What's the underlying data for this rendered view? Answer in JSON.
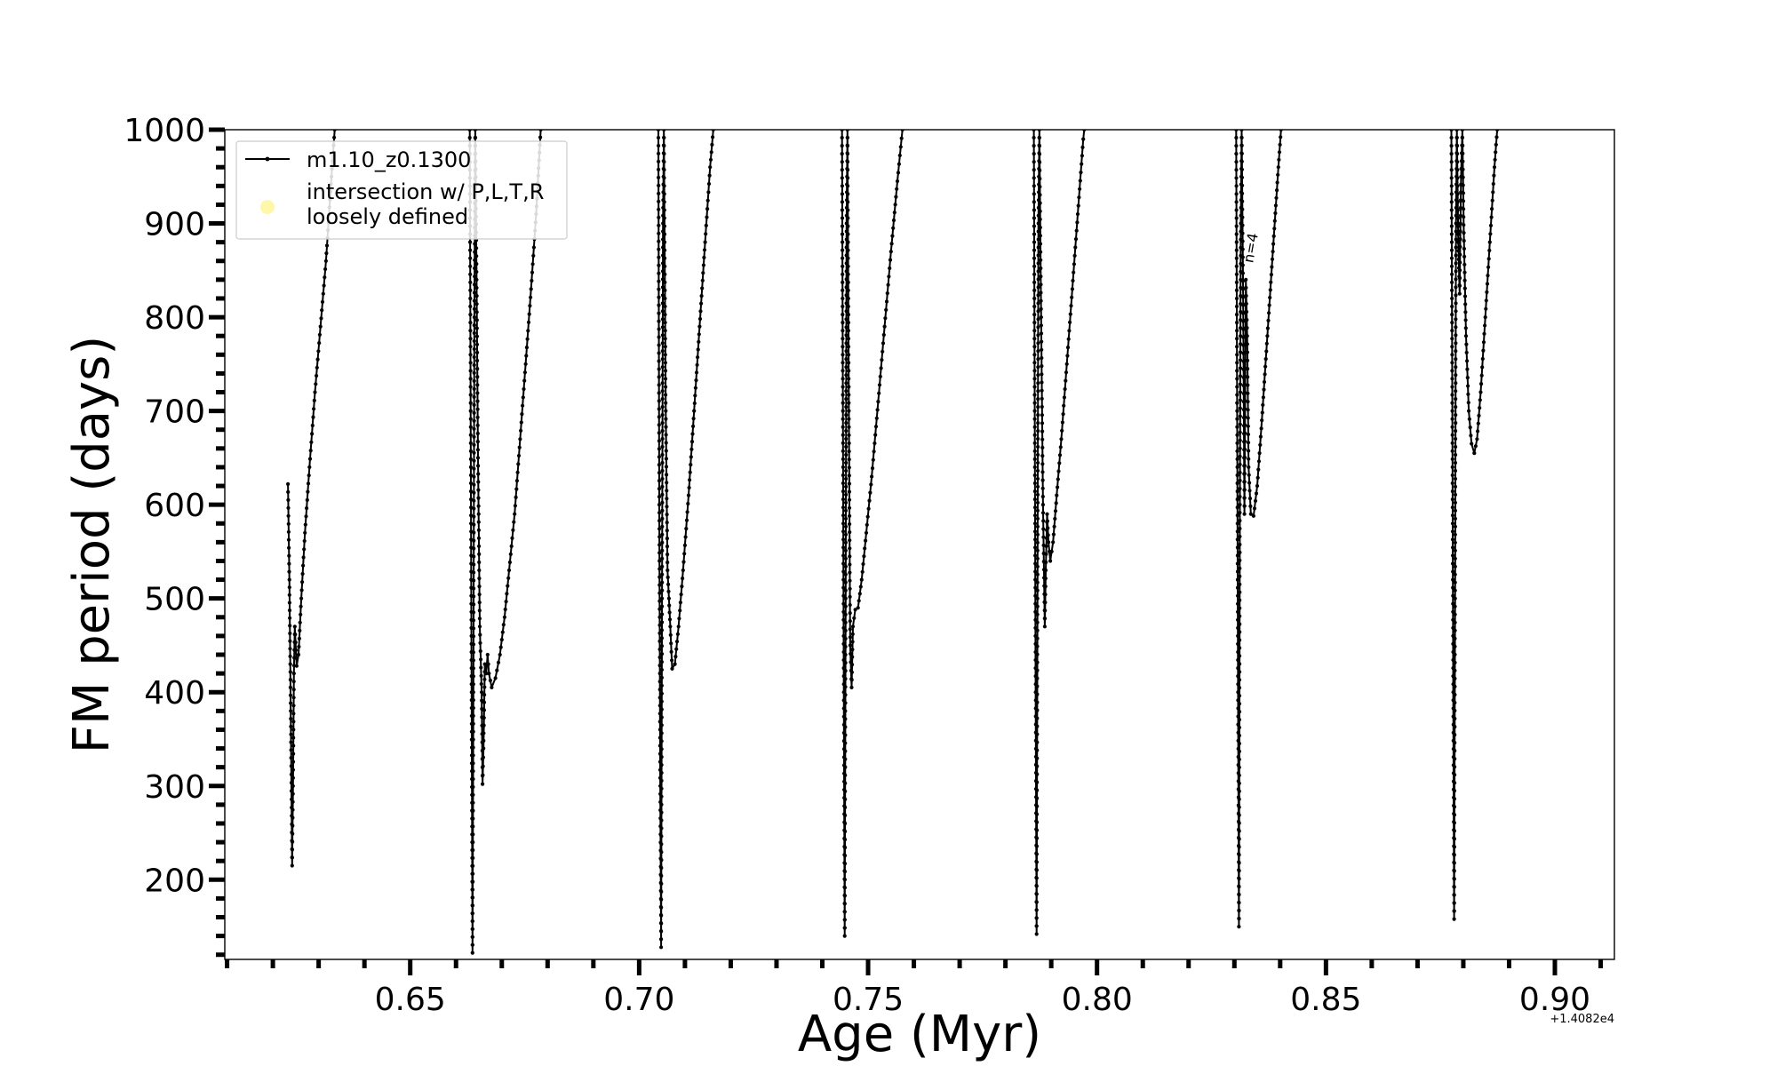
{
  "chart_data": {
    "type": "line",
    "xlabel": "Age (Myr)",
    "ylabel": "FM period (days)",
    "x_offset_label": "+1.4082e4",
    "xlim": [
      0.6095,
      0.913
    ],
    "ylim": [
      115,
      1000
    ],
    "xticks": [
      0.65,
      0.7,
      0.75,
      0.8,
      0.85,
      0.9
    ],
    "xtick_labels": [
      "0.65",
      "0.70",
      "0.75",
      "0.80",
      "0.85",
      "0.90"
    ],
    "yticks": [
      200,
      300,
      400,
      500,
      600,
      700,
      800,
      900,
      1000
    ],
    "ytick_labels": [
      "200",
      "300",
      "400",
      "500",
      "600",
      "700",
      "800",
      "900",
      "1000"
    ],
    "grid": false,
    "legend_position": "top-left",
    "legend": [
      {
        "label": "m1.10_z0.1300",
        "marker": "line-dot",
        "color": "#000000"
      },
      {
        "label": "intersection w/ P,L,T,R",
        "label_line2": "loosely defined",
        "marker": "circle",
        "color": "#fff7a8"
      }
    ],
    "annotations": [
      {
        "text": "n=4",
        "x": 0.8348,
        "y": 880,
        "rotation": -80
      }
    ],
    "series": [
      {
        "name": "m1.10_z0.1300",
        "color": "#000000",
        "segments": [
          [
            [
              0.6233,
              622
            ],
            [
              0.6236,
              520
            ],
            [
              0.6238,
              430
            ],
            [
              0.624,
              330
            ],
            [
              0.6242,
              215
            ],
            [
              0.6244,
              300
            ],
            [
              0.6246,
              420
            ],
            [
              0.6248,
              470
            ],
            [
              0.6252,
              428
            ],
            [
              0.6256,
              440
            ],
            [
              0.6262,
              500
            ],
            [
              0.627,
              570
            ],
            [
              0.628,
              640
            ],
            [
              0.6292,
              720
            ],
            [
              0.6304,
              790
            ],
            [
              0.6316,
              860
            ],
            [
              0.6328,
              950
            ],
            [
              0.6335,
              1000
            ]
          ],
          [
            [
              0.663,
              1000
            ],
            [
              0.6632,
              700
            ],
            [
              0.6634,
              400
            ],
            [
              0.6636,
              122
            ],
            [
              0.6638,
              400
            ],
            [
              0.664,
              800
            ],
            [
              0.6642,
              1000
            ],
            [
              0.6645,
              840
            ],
            [
              0.6648,
              650
            ],
            [
              0.6652,
              470
            ],
            [
              0.6656,
              400
            ],
            [
              0.6658,
              302
            ],
            [
              0.666,
              340
            ],
            [
              0.6663,
              430
            ],
            [
              0.6666,
              420
            ],
            [
              0.6669,
              440
            ],
            [
              0.6672,
              420
            ],
            [
              0.6678,
              405
            ],
            [
              0.6686,
              415
            ],
            [
              0.6696,
              440
            ],
            [
              0.6706,
              480
            ],
            [
              0.6716,
              530
            ],
            [
              0.6728,
              590
            ],
            [
              0.674,
              670
            ],
            [
              0.6752,
              750
            ],
            [
              0.6764,
              830
            ],
            [
              0.6775,
              910
            ],
            [
              0.6785,
              1000
            ]
          ],
          [
            [
              0.7042,
              1000
            ],
            [
              0.7044,
              600
            ],
            [
              0.7046,
              300
            ],
            [
              0.7048,
              128
            ],
            [
              0.705,
              500
            ],
            [
              0.7052,
              900
            ],
            [
              0.7054,
              1000
            ],
            [
              0.7058,
              700
            ],
            [
              0.7062,
              530
            ],
            [
              0.7065,
              500
            ],
            [
              0.7068,
              470
            ],
            [
              0.7072,
              425
            ],
            [
              0.7078,
              430
            ],
            [
              0.7086,
              470
            ],
            [
              0.7096,
              530
            ],
            [
              0.7108,
              610
            ],
            [
              0.712,
              700
            ],
            [
              0.7132,
              790
            ],
            [
              0.7144,
              880
            ],
            [
              0.7155,
              960
            ],
            [
              0.7162,
              1000
            ]
          ],
          [
            [
              0.7443,
              1000
            ],
            [
              0.7445,
              700
            ],
            [
              0.7447,
              400
            ],
            [
              0.7449,
              140
            ],
            [
              0.7451,
              500
            ],
            [
              0.7453,
              900
            ],
            [
              0.7455,
              1000
            ],
            [
              0.7458,
              700
            ],
            [
              0.7461,
              450
            ],
            [
              0.7464,
              405
            ],
            [
              0.7467,
              470
            ],
            [
              0.7472,
              488
            ],
            [
              0.7478,
              490
            ],
            [
              0.7486,
              520
            ],
            [
              0.7496,
              570
            ],
            [
              0.7508,
              630
            ],
            [
              0.7522,
              710
            ],
            [
              0.7536,
              790
            ],
            [
              0.755,
              870
            ],
            [
              0.7564,
              945
            ],
            [
              0.7575,
              1000
            ]
          ],
          [
            [
              0.7862,
              1000
            ],
            [
              0.7864,
              700
            ],
            [
              0.7866,
              400
            ],
            [
              0.7868,
              142
            ],
            [
              0.787,
              500
            ],
            [
              0.7872,
              900
            ],
            [
              0.7874,
              1000
            ],
            [
              0.7878,
              800
            ],
            [
              0.7882,
              600
            ],
            [
              0.7886,
              470
            ],
            [
              0.7888,
              530
            ],
            [
              0.7891,
              590
            ],
            [
              0.7894,
              560
            ],
            [
              0.7898,
              540
            ],
            [
              0.7904,
              560
            ],
            [
              0.7912,
              610
            ],
            [
              0.7922,
              670
            ],
            [
              0.7934,
              750
            ],
            [
              0.7946,
              830
            ],
            [
              0.7958,
              910
            ],
            [
              0.797,
              990
            ],
            [
              0.7972,
              1000
            ]
          ],
          [
            [
              0.8304,
              1000
            ],
            [
              0.8306,
              700
            ],
            [
              0.8308,
              400
            ],
            [
              0.831,
              150
            ],
            [
              0.8312,
              600
            ],
            [
              0.8314,
              900
            ],
            [
              0.8316,
              1000
            ],
            [
              0.8319,
              830
            ],
            [
              0.8322,
              590
            ],
            [
              0.8325,
              840
            ],
            [
              0.8328,
              780
            ],
            [
              0.8331,
              640
            ],
            [
              0.8336,
              590
            ],
            [
              0.8342,
              588
            ],
            [
              0.835,
              620
            ],
            [
              0.836,
              690
            ],
            [
              0.8372,
              780
            ],
            [
              0.8384,
              870
            ],
            [
              0.8396,
              960
            ],
            [
              0.8402,
              1000
            ]
          ],
          [
            [
              0.8774,
              1000
            ],
            [
              0.8776,
              700
            ],
            [
              0.8778,
              400
            ],
            [
              0.878,
              158
            ],
            [
              0.8782,
              500
            ],
            [
              0.8784,
              900
            ],
            [
              0.8786,
              1000
            ],
            [
              0.8789,
              880
            ],
            [
              0.8792,
              825
            ],
            [
              0.8795,
              950
            ],
            [
              0.8798,
              1000
            ],
            [
              0.8801,
              890
            ],
            [
              0.8806,
              780
            ],
            [
              0.8812,
              700
            ],
            [
              0.8818,
              665
            ],
            [
              0.8824,
              655
            ],
            [
              0.883,
              670
            ],
            [
              0.8838,
              720
            ],
            [
              0.8848,
              800
            ],
            [
              0.8858,
              880
            ],
            [
              0.8868,
              960
            ],
            [
              0.8874,
              1000
            ]
          ]
        ]
      }
    ]
  }
}
